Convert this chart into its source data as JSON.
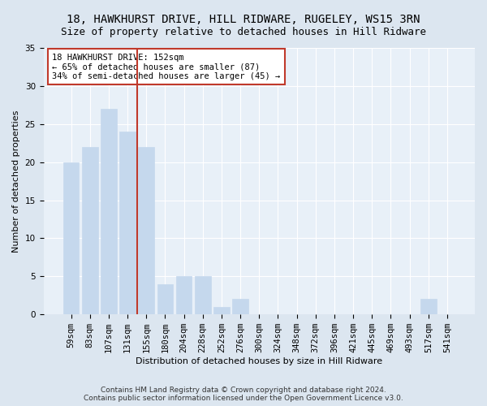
{
  "title": "18, HAWKHURST DRIVE, HILL RIDWARE, RUGELEY, WS15 3RN",
  "subtitle": "Size of property relative to detached houses in Hill Ridware",
  "xlabel": "Distribution of detached houses by size in Hill Ridware",
  "ylabel": "Number of detached properties",
  "categories": [
    "59sqm",
    "83sqm",
    "107sqm",
    "131sqm",
    "155sqm",
    "180sqm",
    "204sqm",
    "228sqm",
    "252sqm",
    "276sqm",
    "300sqm",
    "324sqm",
    "348sqm",
    "372sqm",
    "396sqm",
    "421sqm",
    "445sqm",
    "469sqm",
    "493sqm",
    "517sqm",
    "541sqm"
  ],
  "values": [
    20,
    22,
    27,
    24,
    22,
    4,
    5,
    5,
    1,
    2,
    0,
    0,
    0,
    0,
    0,
    0,
    0,
    0,
    0,
    2,
    0
  ],
  "bar_color": "#c5d8ed",
  "bar_edgecolor": "#c5d8ed",
  "vline_color": "#c0392b",
  "vline_pos": 3.5,
  "annotation_text": "18 HAWKHURST DRIVE: 152sqm\n← 65% of detached houses are smaller (87)\n34% of semi-detached houses are larger (45) →",
  "annotation_box_facecolor": "#ffffff",
  "annotation_box_edgecolor": "#c0392b",
  "ylim": [
    0,
    35
  ],
  "yticks": [
    0,
    5,
    10,
    15,
    20,
    25,
    30,
    35
  ],
  "footer": "Contains HM Land Registry data © Crown copyright and database right 2024.\nContains public sector information licensed under the Open Government Licence v3.0.",
  "bg_color": "#dce6f0",
  "plot_bg_color": "#e8f0f8",
  "grid_color": "#ffffff",
  "title_fontsize": 10,
  "subtitle_fontsize": 9,
  "axis_label_fontsize": 8,
  "tick_fontsize": 7.5,
  "annotation_fontsize": 7.5,
  "footer_fontsize": 6.5
}
